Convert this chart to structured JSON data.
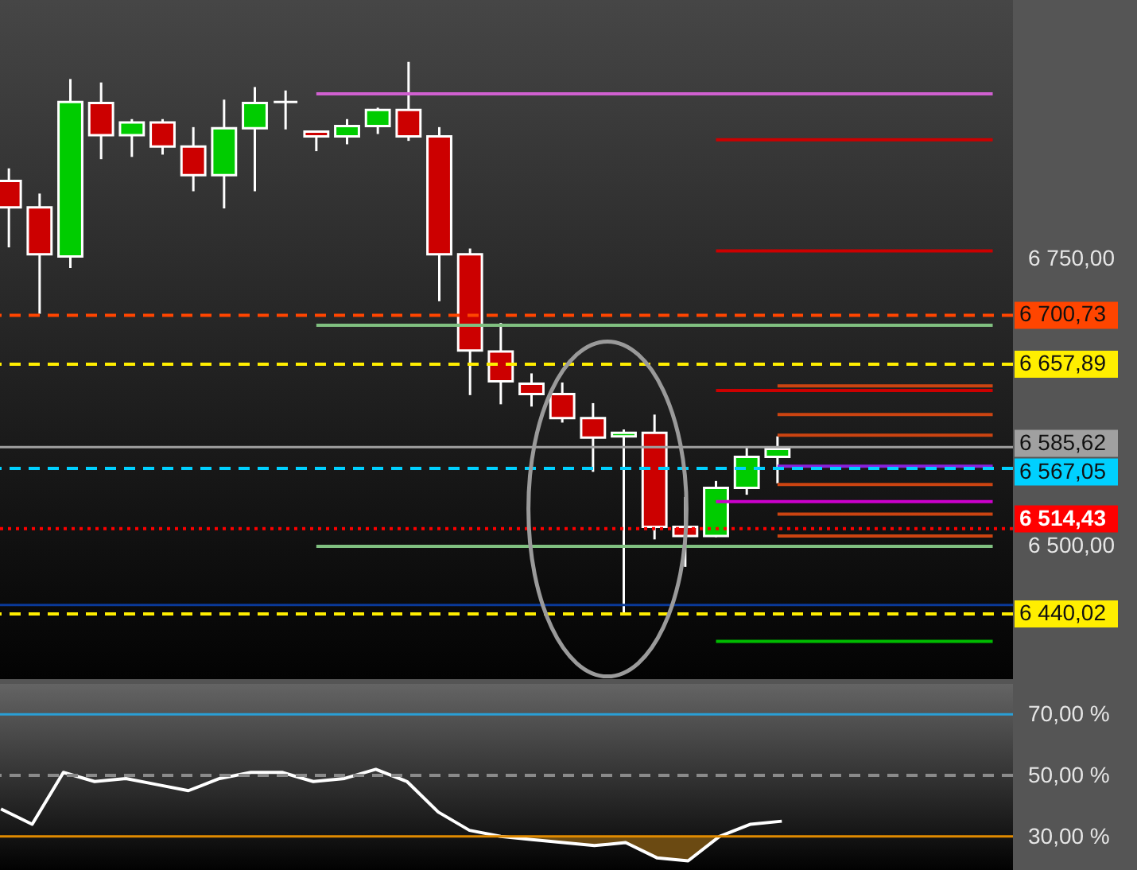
{
  "chart_data": [
    {
      "type": "candlestick",
      "categories": [
        null,
        null,
        null,
        null,
        null,
        null,
        null,
        null,
        null,
        null,
        null,
        null,
        null,
        null,
        null,
        null,
        null,
        null,
        null,
        null,
        null,
        null,
        null,
        null,
        null,
        null,
        null,
        null,
        null,
        null,
        null,
        null,
        null
      ],
      "ohlc": [
        [
          6818,
          6829,
          6760,
          6795
        ],
        [
          6795,
          6807,
          6702,
          6754
        ],
        [
          6752,
          6907,
          6742,
          6887
        ],
        [
          6886,
          6904,
          6837,
          6858
        ],
        [
          6858,
          6872,
          6839,
          6869
        ],
        [
          6869,
          6872,
          6841,
          6848
        ],
        [
          6848,
          6865,
          6809,
          6823
        ],
        [
          6823,
          6889,
          6794,
          6864
        ],
        [
          6864,
          6900,
          6809,
          6886
        ],
        [
          6887,
          6897,
          6863,
          6887
        ],
        [
          6861,
          6861,
          6844,
          6857
        ],
        [
          6857,
          6872,
          6850,
          6866
        ],
        [
          6866,
          6882,
          6859,
          6880
        ],
        [
          6880,
          6922,
          6853,
          6857
        ],
        [
          6857,
          6865,
          6713,
          6754
        ],
        [
          6754,
          6759,
          6631,
          6670
        ],
        [
          6669,
          6694,
          6623,
          6643
        ],
        [
          6641,
          6650,
          6621,
          6632
        ],
        [
          6632,
          6642,
          6607,
          6611
        ],
        [
          6611,
          6624,
          6564,
          6594
        ],
        [
          6595,
          6601,
          6440,
          6598
        ],
        [
          6598,
          6614,
          6505,
          6516
        ],
        [
          6516,
          6542,
          6481,
          6508
        ],
        [
          6508,
          6556,
          6507,
          6550
        ],
        [
          6550,
          6586,
          6544,
          6577
        ],
        [
          6577,
          6595,
          6554,
          6584
        ],
        null,
        null,
        null,
        null,
        null,
        null,
        null
      ],
      "colors": [
        "#cc0000",
        "#cc0000",
        "#00cc00",
        "#cc0000",
        "#00cc00",
        "#cc0000",
        "#cc0000",
        "#00cc00",
        "#00cc00",
        "#ffffff",
        "#cc0000",
        "#00cc00",
        "#00cc00",
        "#cc0000",
        "#cc0000",
        "#cc0000",
        "#cc0000",
        "#cc0000",
        "#cc0000",
        "#cc0000",
        "#00cc00",
        "#cc0000",
        "#cc0000",
        "#00cc00",
        "#00cc00",
        "#00cc00",
        null,
        null,
        null,
        null,
        null,
        null,
        null
      ],
      "series": [
        {
          "type": "line",
          "color": "#d060d0",
          "values": [
            null,
            null,
            null,
            null,
            null,
            null,
            null,
            null,
            null,
            null,
            6894,
            6894,
            6894,
            6894,
            6894,
            6894,
            6894,
            6894,
            6894,
            6894,
            6894,
            6894,
            6894,
            6894,
            6894,
            6894,
            6894,
            6894,
            6894,
            6894,
            6894,
            6894,
            6894
          ]
        },
        {
          "type": "line",
          "color": "#cc0000",
          "values": [
            null,
            null,
            null,
            null,
            null,
            null,
            null,
            null,
            null,
            null,
            null,
            null,
            null,
            null,
            null,
            null,
            null,
            null,
            null,
            null,
            null,
            null,
            null,
            6854,
            6854,
            6854,
            6854,
            6854,
            6854,
            6854,
            6854,
            6854,
            6854
          ]
        },
        {
          "type": "line",
          "color": "#cc0000",
          "values": [
            null,
            null,
            null,
            null,
            null,
            null,
            null,
            null,
            null,
            null,
            null,
            null,
            null,
            null,
            null,
            null,
            null,
            null,
            null,
            null,
            null,
            null,
            null,
            6757,
            6757,
            6757,
            6757,
            6757,
            6757,
            6757,
            6757,
            6757,
            6757
          ]
        },
        {
          "type": "line",
          "color": "#80c080",
          "values": [
            null,
            null,
            null,
            null,
            null,
            null,
            null,
            null,
            null,
            null,
            6692,
            6692,
            6692,
            6692,
            6692,
            6692,
            6692,
            6692,
            6692,
            6692,
            6692,
            6692,
            6692,
            6692,
            6692,
            6692,
            6692,
            6692,
            6692,
            6692,
            6692,
            6692,
            6692
          ]
        },
        {
          "type": "line",
          "color": "#cc4411",
          "values": [
            null,
            null,
            null,
            null,
            null,
            null,
            null,
            null,
            null,
            null,
            null,
            null,
            null,
            null,
            null,
            null,
            null,
            null,
            null,
            null,
            null,
            null,
            null,
            null,
            null,
            6639,
            6639,
            6639,
            6639,
            6639,
            6639,
            6639,
            6639
          ]
        },
        {
          "type": "line",
          "color": "#cc0000",
          "values": [
            null,
            null,
            null,
            null,
            null,
            null,
            null,
            null,
            null,
            null,
            null,
            null,
            null,
            null,
            null,
            null,
            null,
            null,
            null,
            null,
            null,
            null,
            null,
            6635,
            6635,
            6635,
            6635,
            6635,
            6635,
            6635,
            6635,
            6635,
            6635
          ]
        },
        {
          "type": "line",
          "color": "#cc4411",
          "values": [
            null,
            null,
            null,
            null,
            null,
            null,
            null,
            null,
            null,
            null,
            null,
            null,
            null,
            null,
            null,
            null,
            null,
            null,
            null,
            null,
            null,
            null,
            null,
            null,
            null,
            6614,
            6614,
            6614,
            6614,
            6614,
            6614,
            6614,
            6614
          ]
        },
        {
          "type": "line",
          "color": "#cc4411",
          "values": [
            null,
            null,
            null,
            null,
            null,
            null,
            null,
            null,
            null,
            null,
            null,
            null,
            null,
            null,
            null,
            null,
            null,
            null,
            null,
            null,
            null,
            null,
            null,
            null,
            null,
            6596,
            6596,
            6596,
            6596,
            6596,
            6596,
            6596,
            6596
          ]
        },
        {
          "type": "line",
          "color": "#8822dd",
          "values": [
            null,
            null,
            null,
            null,
            null,
            null,
            null,
            null,
            null,
            null,
            null,
            null,
            null,
            null,
            null,
            null,
            null,
            null,
            null,
            null,
            null,
            null,
            null,
            null,
            null,
            6569,
            6569,
            6569,
            6569,
            6569,
            6569,
            6569,
            6569
          ]
        },
        {
          "type": "line",
          "color": "#cc4411",
          "values": [
            null,
            null,
            null,
            null,
            null,
            null,
            null,
            null,
            null,
            null,
            null,
            null,
            null,
            null,
            null,
            null,
            null,
            null,
            null,
            null,
            null,
            null,
            null,
            null,
            null,
            6553,
            6553,
            6553,
            6553,
            6553,
            6553,
            6553,
            6553
          ]
        },
        {
          "type": "line",
          "color": "#cc00cc",
          "values": [
            null,
            null,
            null,
            null,
            null,
            null,
            null,
            null,
            null,
            null,
            null,
            null,
            null,
            null,
            null,
            null,
            null,
            null,
            null,
            null,
            null,
            null,
            null,
            6538,
            6538,
            6538,
            6538,
            6538,
            6538,
            6538,
            6538,
            6538,
            6538
          ]
        },
        {
          "type": "line",
          "color": "#cc4411",
          "values": [
            null,
            null,
            null,
            null,
            null,
            null,
            null,
            null,
            null,
            null,
            null,
            null,
            null,
            null,
            null,
            null,
            null,
            null,
            null,
            null,
            null,
            null,
            null,
            null,
            null,
            6527,
            6527,
            6527,
            6527,
            6527,
            6527,
            6527,
            6527
          ]
        },
        {
          "type": "line",
          "color": "#cc4411",
          "values": [
            null,
            null,
            null,
            null,
            null,
            null,
            null,
            null,
            null,
            null,
            null,
            null,
            null,
            null,
            null,
            null,
            null,
            null,
            null,
            null,
            null,
            null,
            null,
            null,
            null,
            6508,
            6508,
            6508,
            6508,
            6508,
            6508,
            6508,
            6508
          ]
        },
        {
          "type": "line",
          "color": "#80c080",
          "values": [
            null,
            null,
            null,
            null,
            null,
            null,
            null,
            null,
            null,
            null,
            6499,
            6499,
            6499,
            6499,
            6499,
            6499,
            6499,
            6499,
            6499,
            6499,
            6499,
            6499,
            6499,
            6499,
            6499,
            6499,
            6499,
            6499,
            6499,
            6499,
            6499,
            6499,
            6499
          ]
        },
        {
          "type": "line",
          "color": "#00bb00",
          "values": [
            null,
            null,
            null,
            null,
            null,
            null,
            null,
            null,
            null,
            null,
            null,
            null,
            null,
            null,
            null,
            null,
            null,
            null,
            null,
            null,
            null,
            null,
            null,
            6416,
            6416,
            6416,
            6416,
            6416,
            6416,
            6416,
            6416,
            6416,
            6416
          ]
        }
      ],
      "ylim": [
        6383,
        6976
      ],
      "yticks": [
        {
          "value": 6750,
          "label": "6 750,00"
        },
        {
          "value": 6500,
          "label": "6 500,00"
        }
      ],
      "ref_lines": [
        {
          "axis": "y",
          "value": 6700.73,
          "label": "6 700,73",
          "color": "#ff4500",
          "line_style": "dashed"
        },
        {
          "axis": "y",
          "value": 6657.89,
          "label": "6 657,89",
          "color": "#ffee00",
          "line_style": "dashed"
        },
        {
          "axis": "y",
          "value": 6585.62,
          "label": "6 585,62",
          "color": "#a0a0a0",
          "line_style": "solid"
        },
        {
          "axis": "y",
          "value": 6567.05,
          "label": "6 567,05",
          "color": "#00d0ff",
          "line_style": "dashed"
        },
        {
          "axis": "y",
          "value": 6514.43,
          "label": "6 514,43",
          "color": "#ff0000",
          "line_style": "dotted"
        },
        {
          "axis": "y",
          "value": 6447.7,
          "color": "#0a3a9a",
          "line_style": "solid"
        },
        {
          "axis": "y",
          "value": 6440.02,
          "label": "6 440,02",
          "color": "#ffee00",
          "line_style": "dashed"
        }
      ],
      "tick_labels": "y"
    },
    {
      "type": "line",
      "categories": [
        null,
        null,
        null,
        null,
        null,
        null,
        null,
        null,
        null,
        null,
        null,
        null,
        null,
        null,
        null,
        null,
        null,
        null,
        null,
        null,
        null,
        null,
        null,
        null,
        null,
        null,
        null,
        null,
        null,
        null,
        null,
        null,
        null
      ],
      "series": [
        {
          "type": "line",
          "color": "#ffffff",
          "values": [
            39,
            34,
            51,
            48,
            49,
            47,
            45,
            49,
            51,
            51,
            48,
            49,
            52,
            48,
            38,
            32,
            30,
            29,
            28,
            27,
            28,
            23,
            22,
            30,
            34,
            35,
            null,
            null,
            null,
            null,
            null,
            null,
            null
          ]
        },
        {
          "type": "area",
          "color": "#6b4a12",
          "values": [
            null,
            null,
            null,
            null,
            null,
            null,
            null,
            null,
            null,
            null,
            null,
            null,
            null,
            null,
            null,
            null,
            30,
            30,
            30,
            30,
            30,
            30,
            30,
            30,
            null,
            null,
            null,
            null,
            null,
            null,
            null,
            null,
            null
          ]
        }
      ],
      "ylim": [
        19,
        80
      ],
      "yticks": [
        {
          "value": 70,
          "label": "70,00 %"
        },
        {
          "value": 50,
          "label": "50,00 %"
        },
        {
          "value": 30,
          "label": "30,00 %"
        }
      ],
      "ref_lines": [
        {
          "axis": "y",
          "value": 70,
          "color": "#2a9fd6",
          "line_style": "solid"
        },
        {
          "axis": "y",
          "value": 50,
          "color": "#8a8a8a",
          "line_style": "dashed"
        },
        {
          "axis": "y",
          "value": 30,
          "color": "#e08a00",
          "line_style": "solid"
        }
      ],
      "tick_labels": "y"
    }
  ]
}
